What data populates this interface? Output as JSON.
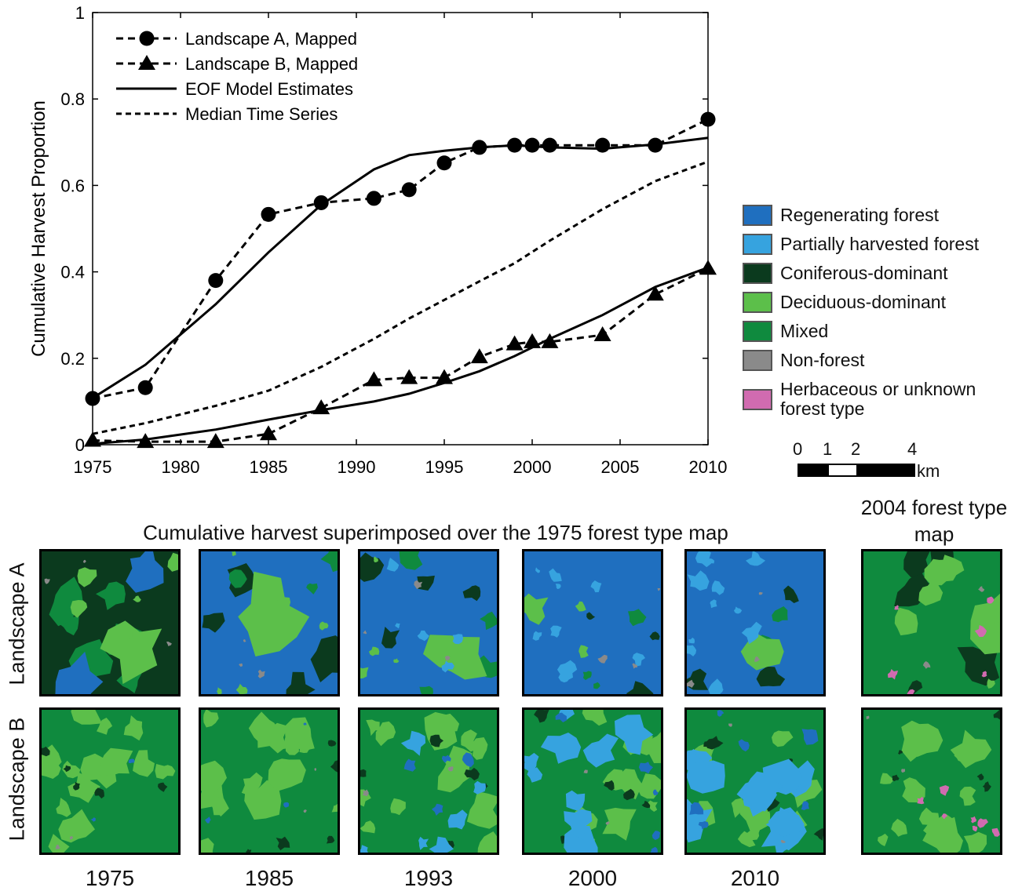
{
  "chart_data": {
    "type": "line",
    "ylabel": "Cumulative Harvest Proportion",
    "xlim": [
      1975,
      2010
    ],
    "ylim": [
      0,
      1
    ],
    "x_ticks": [
      "1975",
      "1980",
      "1985",
      "1990",
      "1995",
      "2000",
      "2005",
      "2010"
    ],
    "y_ticks": [
      "0",
      "0.2",
      "0.4",
      "0.6",
      "0.8",
      "1"
    ],
    "legend_position": "top-left",
    "series": [
      {
        "name": "Landscape A, Mapped",
        "marker": "circle",
        "style": "dashed",
        "x": [
          1975,
          1978,
          1982,
          1985,
          1988,
          1991,
          1993,
          1995,
          1997,
          1999,
          2000,
          2001,
          2004,
          2007,
          2010
        ],
        "y": [
          0.107,
          0.132,
          0.38,
          0.533,
          0.56,
          0.57,
          0.59,
          0.652,
          0.688,
          0.693,
          0.693,
          0.693,
          0.693,
          0.693,
          0.753
        ]
      },
      {
        "name": "Landscape B, Mapped",
        "marker": "triangle",
        "style": "dashed",
        "x": [
          1975,
          1978,
          1982,
          1985,
          1988,
          1991,
          1993,
          1995,
          1997,
          1999,
          2000,
          2001,
          2004,
          2007,
          2010
        ],
        "y": [
          0.01,
          0.007,
          0.007,
          0.025,
          0.085,
          0.15,
          0.155,
          0.155,
          0.203,
          0.233,
          0.238,
          0.238,
          0.254,
          0.348,
          0.408
        ]
      },
      {
        "name": "EOF Model Estimates",
        "style": "solid",
        "group": "A",
        "x": [
          1975,
          1978,
          1982,
          1985,
          1988,
          1991,
          1993,
          1995,
          1997,
          1999,
          2001,
          2004,
          2007,
          2010
        ],
        "y": [
          0.108,
          0.185,
          0.325,
          0.445,
          0.555,
          0.637,
          0.67,
          0.68,
          0.688,
          0.693,
          0.688,
          0.685,
          0.695,
          0.71
        ]
      },
      {
        "name": "EOF Model Estimates",
        "style": "solid",
        "group": "B",
        "x": [
          1975,
          1978,
          1982,
          1985,
          1988,
          1991,
          1993,
          1995,
          1997,
          1999,
          2001,
          2004,
          2007,
          2010
        ],
        "y": [
          0.002,
          0.012,
          0.035,
          0.058,
          0.08,
          0.1,
          0.118,
          0.143,
          0.17,
          0.205,
          0.245,
          0.3,
          0.365,
          0.41
        ]
      },
      {
        "name": "Median Time Series",
        "style": "dotted",
        "x": [
          1975,
          1978,
          1982,
          1985,
          1988,
          1991,
          1993,
          1995,
          1997,
          1999,
          2001,
          2004,
          2007,
          2010
        ],
        "y": [
          0.025,
          0.05,
          0.09,
          0.125,
          0.18,
          0.245,
          0.292,
          0.335,
          0.378,
          0.42,
          0.472,
          0.545,
          0.61,
          0.655
        ]
      }
    ],
    "legend": [
      {
        "label": "Landscape A, Mapped",
        "marker": "circle",
        "style": "dashed"
      },
      {
        "label": "Landscape B, Mapped",
        "marker": "triangle",
        "style": "dashed"
      },
      {
        "label": "EOF Model Estimates",
        "marker": "none",
        "style": "solid"
      },
      {
        "label": "Median Time Series",
        "marker": "none",
        "style": "dotted"
      }
    ]
  },
  "map_legend": [
    {
      "label": "Regenerating forest",
      "color": "#1f6fbf"
    },
    {
      "label": "Partially harvested forest",
      "color": "#36a3df"
    },
    {
      "label": "Coniferous-dominant",
      "color": "#0b3a1e"
    },
    {
      "label": "Deciduous-dominant",
      "color": "#5cbf4a"
    },
    {
      "label": "Mixed",
      "color": "#0f8a3e"
    },
    {
      "label": "Non-forest",
      "color": "#8a8a8a"
    },
    {
      "label": "Herbaceous or unknown forest type",
      "color": "#d16bb0"
    }
  ],
  "scale_bar": {
    "ticks": [
      "0",
      "1",
      "2",
      "4"
    ],
    "unit": "km"
  },
  "maps": {
    "title": "Cumulative harvest superimposed over the 1975 forest type map",
    "forest_2004_title": "2004 forest type map",
    "rows": [
      "Landscape A",
      "Landscape B"
    ],
    "years": [
      "1975",
      "1985",
      "1993",
      "2000",
      "2010"
    ]
  }
}
